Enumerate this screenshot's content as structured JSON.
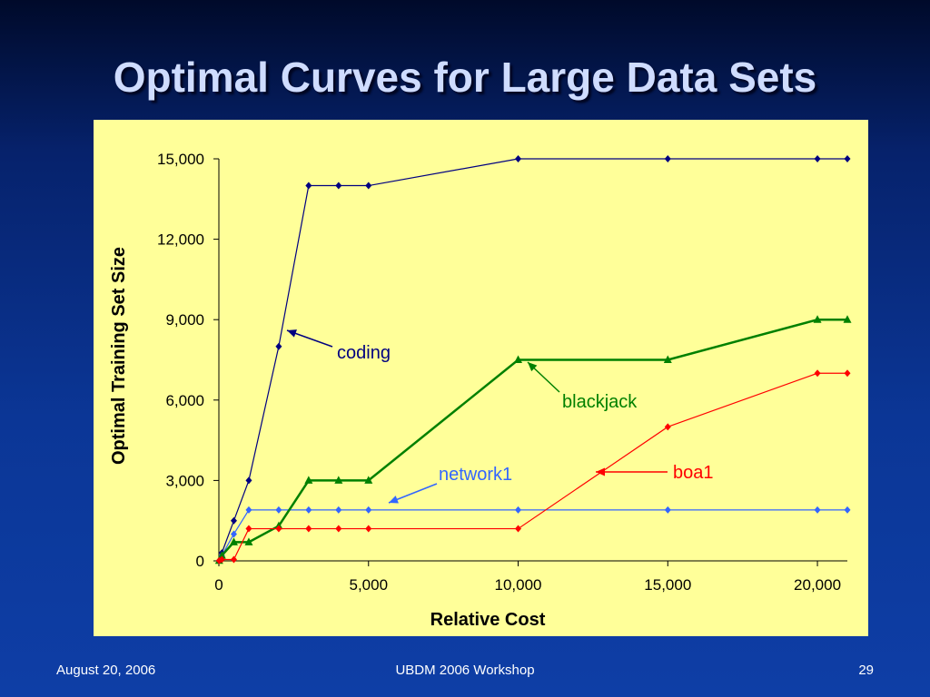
{
  "slide": {
    "title": "Optimal Curves for Large Data Sets",
    "footer_left": "August 20, 2006",
    "footer_center": "UBDM 2006 Workshop",
    "footer_right": "29"
  },
  "colors": {
    "background": "#0b3696",
    "plot_area": "#ffff99",
    "coding": "#000080",
    "network1": "#3366ff",
    "blackjack": "#008000",
    "boa1": "#ff0000"
  },
  "chart_data": {
    "type": "line",
    "xlabel": "Relative Cost",
    "ylabel": "Optimal Training Set Size",
    "xlim": [
      0,
      21000
    ],
    "ylim": [
      0,
      15000
    ],
    "x_ticks": [
      0,
      5000,
      10000,
      15000,
      20000
    ],
    "x_tick_labels": [
      "0",
      "5,000",
      "10,000",
      "15,000",
      "20,000"
    ],
    "y_ticks": [
      0,
      3000,
      6000,
      9000,
      12000,
      15000
    ],
    "y_tick_labels": [
      "0",
      "3,000",
      "6,000",
      "9,000",
      "12,000",
      "15,000"
    ],
    "grid": false,
    "legend": "none",
    "x": [
      10,
      100,
      500,
      1000,
      2000,
      3000,
      4000,
      5000,
      10000,
      15000,
      20000,
      21000
    ],
    "series": [
      {
        "key": "coding",
        "name": "coding",
        "color": "#000080",
        "marker": "diamond",
        "values": [
          10,
          300,
          1500,
          3000,
          8000,
          14000,
          14000,
          14000,
          15000,
          15000,
          15000,
          15000
        ]
      },
      {
        "key": "network1",
        "name": "network1",
        "color": "#3366ff",
        "marker": "diamond",
        "values": [
          10,
          200,
          1000,
          1900,
          1900,
          1900,
          1900,
          1900,
          1900,
          1900,
          1900,
          1900
        ]
      },
      {
        "key": "blackjack",
        "name": "blackjack",
        "color": "#008000",
        "marker": "triangle",
        "values": [
          10,
          200,
          700,
          700,
          1300,
          3000,
          3000,
          3000,
          7500,
          7500,
          9000,
          9000
        ]
      },
      {
        "key": "boa1",
        "name": "boa1",
        "color": "#ff0000",
        "marker": "diamond",
        "values": [
          10,
          50,
          50,
          1200,
          1200,
          1200,
          1200,
          1200,
          1200,
          5000,
          7000,
          7000
        ]
      }
    ],
    "annotations": [
      {
        "series": "coding",
        "text": "coding",
        "at_x": 2400,
        "at_y": 8600
      },
      {
        "series": "blackjack",
        "text": "blackjack",
        "at_x": 10500,
        "at_y": 7400
      },
      {
        "series": "network1",
        "text": "network1",
        "at_x": 5800,
        "at_y": 2100
      },
      {
        "series": "boa1",
        "text": "boa1",
        "at_x": 12900,
        "at_y": 3400
      }
    ]
  }
}
